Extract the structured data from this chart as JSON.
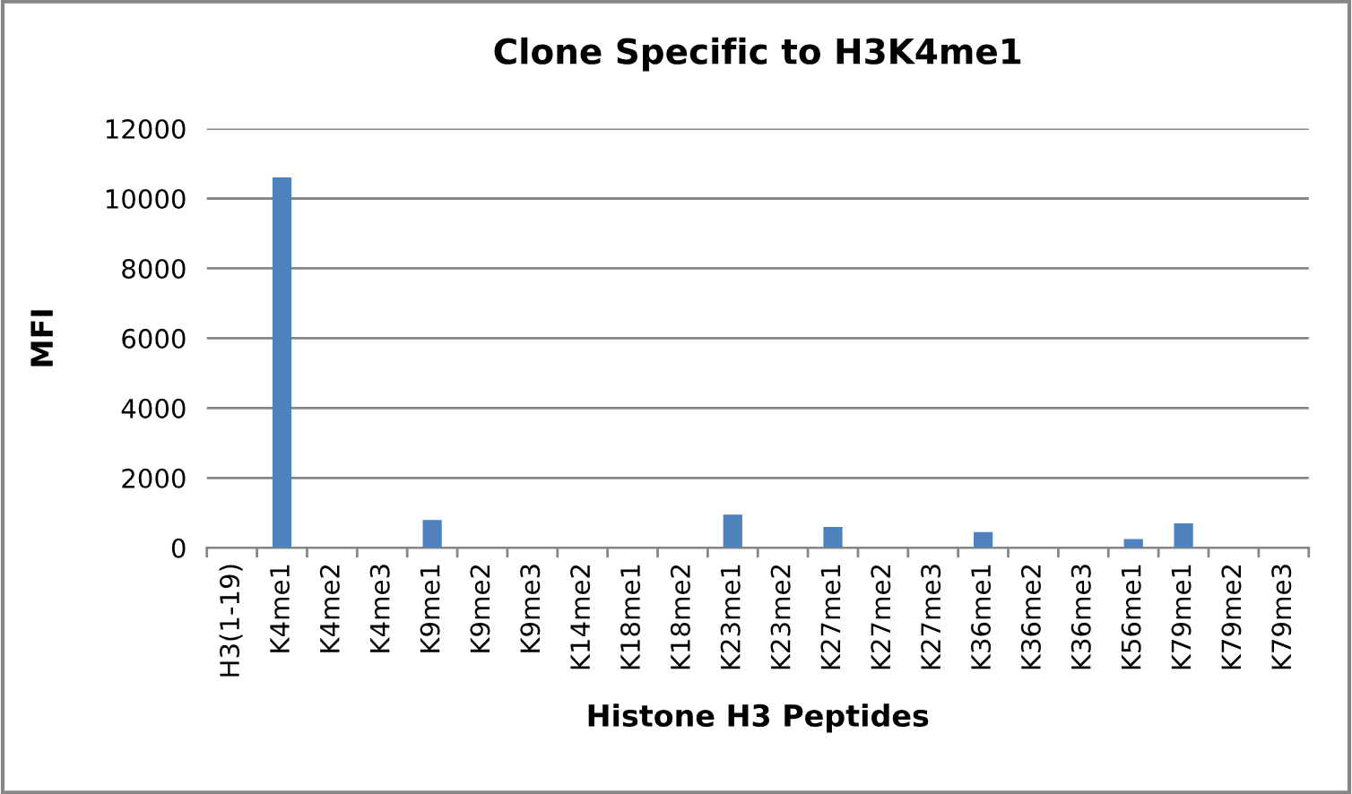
{
  "chart_data": {
    "type": "bar",
    "title": "Clone Specific to H3K4me1",
    "xlabel": "Histone H3 Peptides",
    "ylabel": "MFI",
    "categories": [
      "H3(1-19)",
      "K4me1",
      "K4me2",
      "K4me3",
      "K9me1",
      "K9me2",
      "K9me3",
      "K14me2",
      "K18me1",
      "K18me2",
      "K23me1",
      "K23me2",
      "K27me1",
      "K27me2",
      "K27me3",
      "K36me1",
      "K36me2",
      "K36me3",
      "K56me1",
      "K79me1",
      "K79me2",
      "K79me3"
    ],
    "values": [
      0,
      10600,
      0,
      0,
      800,
      0,
      0,
      0,
      0,
      0,
      950,
      0,
      600,
      0,
      0,
      450,
      0,
      0,
      250,
      700,
      0,
      0
    ],
    "color": "#4f81bd",
    "ylim": [
      0,
      12000
    ],
    "yticks": [
      0,
      2000,
      4000,
      6000,
      8000,
      10000,
      12000
    ],
    "grid": "y",
    "legend": false
  }
}
